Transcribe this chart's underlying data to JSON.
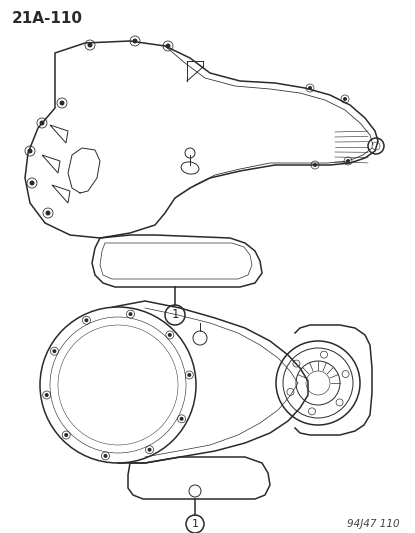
{
  "page_id": "21A-110",
  "doc_id": "94J47 110",
  "background_color": "#ffffff",
  "line_color": "#2a2a2a",
  "fig_width": 4.15,
  "fig_height": 5.33,
  "dpi": 100
}
